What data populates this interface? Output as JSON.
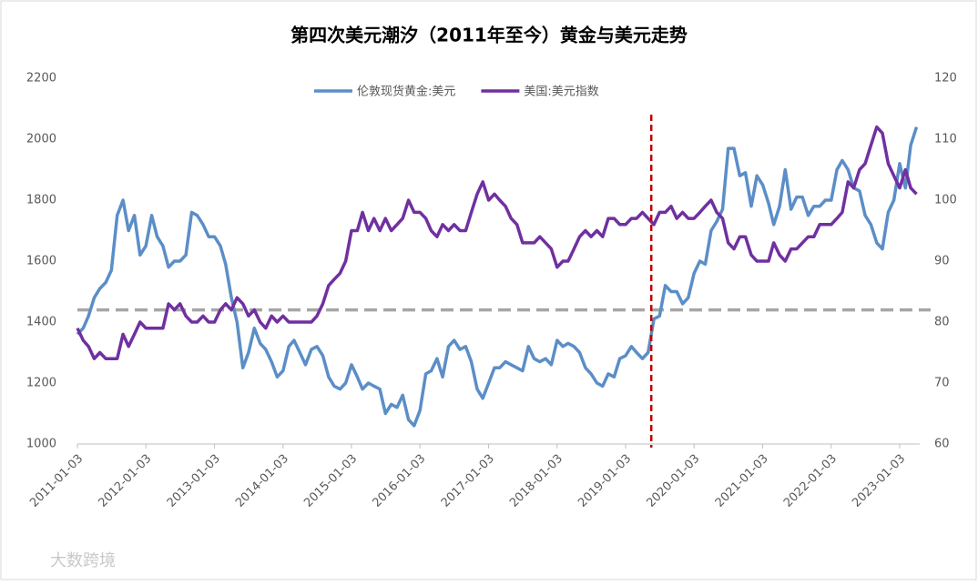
{
  "chart_data": {
    "type": "line",
    "title": "第四次美元潮汐（2011年至今）黄金与美元走势",
    "watermark": "大数跨境",
    "xlim": [
      "2011-01-03",
      "2023-04-20"
    ],
    "xticks": [
      "2011-01-03",
      "2012-01-03",
      "2013-01-03",
      "2014-01-03",
      "2015-01-03",
      "2016-01-03",
      "2017-01-03",
      "2018-01-03",
      "2019-01-03",
      "2020-01-03",
      "2021-01-03",
      "2022-01-03",
      "2023-01-03"
    ],
    "ylim": [
      1000,
      2200
    ],
    "yticks": [
      1000,
      1200,
      1400,
      1600,
      1800,
      2000,
      2200
    ],
    "y2lim": [
      60,
      120
    ],
    "y2ticks": [
      60,
      70,
      80,
      90,
      100,
      110,
      120
    ],
    "legend": "top",
    "reference_hline": {
      "value": 1440,
      "color": "#a6a6a6"
    },
    "reference_vline": {
      "x": "2019-05-20",
      "color": "#c00000"
    },
    "series": [
      {
        "name": "伦敦现货黄金:美元",
        "color": "#5b8ec7",
        "values": [
          1360,
          1380,
          1420,
          1480,
          1510,
          1530,
          1570,
          1750,
          1800,
          1700,
          1750,
          1620,
          1650,
          1750,
          1680,
          1650,
          1580,
          1600,
          1600,
          1620,
          1760,
          1750,
          1720,
          1680,
          1680,
          1650,
          1590,
          1480,
          1400,
          1250,
          1300,
          1380,
          1330,
          1310,
          1270,
          1220,
          1240,
          1320,
          1340,
          1300,
          1260,
          1310,
          1320,
          1290,
          1220,
          1190,
          1180,
          1200,
          1260,
          1220,
          1180,
          1200,
          1190,
          1180,
          1100,
          1130,
          1120,
          1160,
          1080,
          1060,
          1110,
          1230,
          1240,
          1280,
          1220,
          1320,
          1340,
          1310,
          1320,
          1270,
          1180,
          1150,
          1200,
          1250,
          1250,
          1270,
          1260,
          1250,
          1240,
          1320,
          1280,
          1270,
          1280,
          1260,
          1340,
          1320,
          1330,
          1320,
          1300,
          1250,
          1230,
          1200,
          1190,
          1230,
          1220,
          1280,
          1290,
          1320,
          1300,
          1280,
          1300,
          1410,
          1420,
          1520,
          1500,
          1500,
          1460,
          1480,
          1560,
          1600,
          1590,
          1700,
          1730,
          1770,
          1970,
          1970,
          1880,
          1890,
          1780,
          1880,
          1850,
          1790,
          1720,
          1780,
          1900,
          1770,
          1810,
          1810,
          1750,
          1780,
          1780,
          1800,
          1800,
          1900,
          1930,
          1900,
          1840,
          1830,
          1750,
          1720,
          1660,
          1640,
          1760,
          1800,
          1920,
          1840,
          1980,
          2040
        ]
      },
      {
        "name": "美国:美元指数",
        "color": "#7030a0",
        "axis": "y2",
        "values": [
          79,
          77,
          76,
          74,
          75,
          74,
          74,
          74,
          78,
          76,
          78,
          80,
          79,
          79,
          79,
          79,
          83,
          82,
          83,
          81,
          80,
          80,
          81,
          80,
          80,
          82,
          83,
          82,
          84,
          83,
          81,
          82,
          80,
          79,
          81,
          80,
          81,
          80,
          80,
          80,
          80,
          80,
          81,
          83,
          86,
          87,
          88,
          90,
          95,
          95,
          98,
          95,
          97,
          95,
          97,
          95,
          96,
          97,
          100,
          98,
          98,
          97,
          95,
          94,
          96,
          95,
          96,
          95,
          95,
          98,
          101,
          103,
          100,
          101,
          100,
          99,
          97,
          96,
          93,
          93,
          93,
          94,
          93,
          92,
          89,
          90,
          90,
          92,
          94,
          95,
          94,
          95,
          94,
          97,
          97,
          96,
          96,
          97,
          97,
          98,
          97,
          96,
          98,
          98,
          99,
          97,
          98,
          97,
          97,
          98,
          99,
          100,
          98,
          97,
          93,
          92,
          94,
          94,
          91,
          90,
          90,
          90,
          93,
          91,
          90,
          92,
          92,
          93,
          94,
          94,
          96,
          96,
          96,
          97,
          98,
          103,
          102,
          105,
          106,
          109,
          112,
          111,
          106,
          104,
          102,
          105,
          102,
          101
        ]
      }
    ]
  }
}
